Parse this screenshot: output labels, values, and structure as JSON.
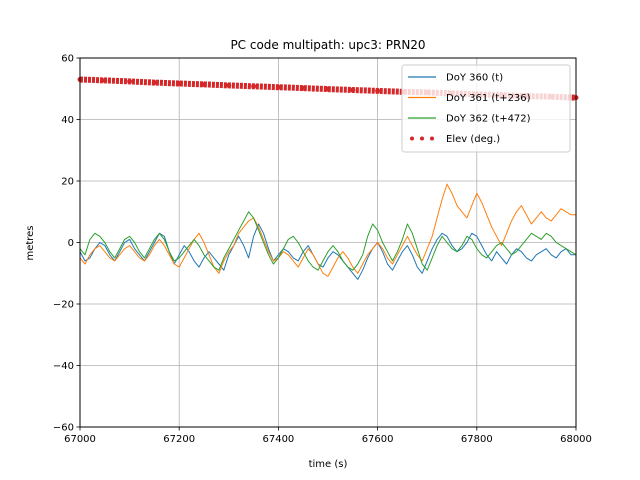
{
  "chart_data": {
    "type": "line",
    "title": "PC code multipath: upc3: PRN20",
    "xlabel": "time (s)",
    "ylabel": "metres",
    "xlim": [
      67000,
      68000
    ],
    "ylim": [
      -60,
      60
    ],
    "xticks": [
      67000,
      67200,
      67400,
      67600,
      67800,
      68000
    ],
    "yticks": [
      -60,
      -40,
      -20,
      0,
      20,
      40,
      60
    ],
    "grid": true,
    "legend_position": "top-right",
    "series": [
      {
        "name": "DoY 360 (t)",
        "color": "#1f77b4",
        "style": "line",
        "x": [
          67000,
          67010,
          67020,
          67030,
          67040,
          67050,
          67060,
          67070,
          67080,
          67090,
          67100,
          67110,
          67120,
          67130,
          67140,
          67150,
          67160,
          67170,
          67180,
          67190,
          67200,
          67210,
          67220,
          67230,
          67240,
          67250,
          67260,
          67270,
          67280,
          67290,
          67300,
          67310,
          67320,
          67330,
          67340,
          67350,
          67360,
          67370,
          67380,
          67390,
          67400,
          67410,
          67420,
          67430,
          67440,
          67450,
          67460,
          67470,
          67480,
          67490,
          67500,
          67510,
          67520,
          67530,
          67540,
          67550,
          67560,
          67570,
          67580,
          67590,
          67600,
          67610,
          67620,
          67630,
          67640,
          67650,
          67660,
          67670,
          67680,
          67690,
          67700,
          67710,
          67720,
          67730,
          67740,
          67750,
          67760,
          67770,
          67780,
          67790,
          67800,
          67810,
          67820,
          67830,
          67840,
          67850,
          67860,
          67870,
          67880,
          67890,
          67900,
          67910,
          67920,
          67930,
          67940,
          67950,
          67960,
          67970,
          67980,
          67990,
          68000
        ],
        "y": [
          -3,
          -6,
          -5,
          -2,
          0,
          -1,
          -4,
          -6,
          -3,
          0,
          1,
          -2,
          -4,
          -6,
          -3,
          0,
          3,
          2,
          -3,
          -7,
          -4,
          -1,
          -3,
          -6,
          -8,
          -5,
          -3,
          -5,
          -7,
          -9,
          -4,
          -1,
          2,
          -1,
          -5,
          2,
          6,
          3,
          -2,
          -6,
          -4,
          -2,
          -3,
          -5,
          -6,
          -3,
          -1,
          -4,
          -7,
          -8,
          -5,
          -3,
          -4,
          -6,
          -8,
          -10,
          -12,
          -9,
          -5,
          -2,
          0,
          -3,
          -7,
          -9,
          -6,
          -3,
          -1,
          -4,
          -8,
          -10,
          -6,
          -2,
          1,
          3,
          2,
          -1,
          -3,
          -2,
          0,
          3,
          2,
          -1,
          -4,
          -6,
          -3,
          -5,
          -7,
          -4,
          -2,
          -3,
          -5,
          -6,
          -4,
          -3,
          -2,
          -4,
          -5,
          -3,
          -2,
          -4,
          -4
        ]
      },
      {
        "name": "DoY 361 (t+236)",
        "color": "#ff7f0e",
        "style": "line",
        "x": [
          67000,
          67010,
          67020,
          67030,
          67040,
          67050,
          67060,
          67070,
          67080,
          67090,
          67100,
          67110,
          67120,
          67130,
          67140,
          67150,
          67160,
          67170,
          67180,
          67190,
          67200,
          67210,
          67220,
          67230,
          67240,
          67250,
          67260,
          67270,
          67280,
          67290,
          67300,
          67310,
          67320,
          67330,
          67340,
          67350,
          67360,
          67370,
          67380,
          67390,
          67400,
          67410,
          67420,
          67430,
          67440,
          67450,
          67460,
          67470,
          67480,
          67490,
          67500,
          67510,
          67520,
          67530,
          67540,
          67550,
          67560,
          67570,
          67580,
          67590,
          67600,
          67610,
          67620,
          67630,
          67640,
          67650,
          67660,
          67670,
          67680,
          67690,
          67700,
          67710,
          67720,
          67730,
          67740,
          67750,
          67760,
          67770,
          67780,
          67790,
          67800,
          67810,
          67820,
          67830,
          67840,
          67850,
          67860,
          67870,
          67880,
          67890,
          67900,
          67910,
          67920,
          67930,
          67940,
          67950,
          67960,
          67970,
          67980,
          67990,
          68000
        ],
        "y": [
          -5,
          -7,
          -4,
          -2,
          -1,
          -3,
          -5,
          -6,
          -4,
          -2,
          -1,
          -3,
          -5,
          -6,
          -4,
          -1,
          1,
          -1,
          -4,
          -7,
          -8,
          -5,
          -2,
          1,
          3,
          0,
          -4,
          -8,
          -10,
          -6,
          -3,
          -1,
          3,
          5,
          7,
          8,
          5,
          1,
          -3,
          -6,
          -5,
          -3,
          -4,
          -6,
          -8,
          -5,
          -2,
          -4,
          -7,
          -10,
          -11,
          -8,
          -5,
          -3,
          -5,
          -8,
          -10,
          -7,
          -4,
          -2,
          0,
          -2,
          -5,
          -7,
          -4,
          -1,
          2,
          -1,
          -4,
          -6,
          -2,
          2,
          8,
          14,
          19,
          16,
          12,
          10,
          8,
          12,
          16,
          13,
          9,
          5,
          2,
          -1,
          3,
          7,
          10,
          12,
          9,
          6,
          8,
          10,
          8,
          7,
          9,
          11,
          10,
          9,
          9
        ]
      },
      {
        "name": "DoY 362 (t+472)",
        "color": "#2ca02c",
        "style": "line",
        "x": [
          67000,
          67010,
          67020,
          67030,
          67040,
          67050,
          67060,
          67070,
          67080,
          67090,
          67100,
          67110,
          67120,
          67130,
          67140,
          67150,
          67160,
          67170,
          67180,
          67190,
          67200,
          67210,
          67220,
          67230,
          67240,
          67250,
          67260,
          67270,
          67280,
          67290,
          67300,
          67310,
          67320,
          67330,
          67340,
          67350,
          67360,
          67370,
          67380,
          67390,
          67400,
          67410,
          67420,
          67430,
          67440,
          67450,
          67460,
          67470,
          67480,
          67490,
          67500,
          67510,
          67520,
          67530,
          67540,
          67550,
          67560,
          67570,
          67580,
          67590,
          67600,
          67610,
          67620,
          67630,
          67640,
          67650,
          67660,
          67670,
          67680,
          67690,
          67700,
          67710,
          67720,
          67730,
          67740,
          67750,
          67760,
          67770,
          67780,
          67790,
          67800,
          67810,
          67820,
          67830,
          67840,
          67850,
          67860,
          67870,
          67880,
          67890,
          67900,
          67910,
          67920,
          67930,
          67940,
          67950,
          67960,
          67970,
          67980,
          67990,
          68000
        ],
        "y": [
          -2,
          -4,
          1,
          3,
          2,
          0,
          -3,
          -5,
          -2,
          1,
          2,
          0,
          -3,
          -5,
          -2,
          1,
          3,
          1,
          -3,
          -6,
          -5,
          -3,
          -1,
          1,
          -1,
          -4,
          -6,
          -8,
          -9,
          -5,
          -2,
          1,
          4,
          7,
          10,
          8,
          4,
          0,
          -4,
          -7,
          -5,
          -2,
          1,
          2,
          0,
          -3,
          -6,
          -8,
          -9,
          -6,
          -3,
          -1,
          -3,
          -6,
          -8,
          -9,
          -7,
          -4,
          2,
          6,
          4,
          0,
          -3,
          -6,
          -3,
          1,
          6,
          3,
          -2,
          -7,
          -9,
          -5,
          -1,
          2,
          0,
          -2,
          -3,
          -1,
          2,
          1,
          -2,
          -4,
          -5,
          -3,
          -1,
          0,
          -2,
          -4,
          -3,
          -1,
          1,
          3,
          2,
          1,
          3,
          2,
          0,
          -1,
          -2,
          -3,
          -4
        ]
      },
      {
        "name": "Elev (deg.)",
        "color": "#d62728",
        "style": "dots",
        "x": [
          67000,
          67050,
          67100,
          67150,
          67200,
          67250,
          67300,
          67350,
          67400,
          67450,
          67500,
          67550,
          67600,
          67650,
          67700,
          67750,
          67800,
          67850,
          67900,
          67950,
          68000
        ],
        "y": [
          53,
          52.7,
          52.4,
          52.0,
          51.7,
          51.4,
          51.1,
          50.8,
          50.5,
          50.2,
          49.9,
          49.6,
          49.3,
          49.0,
          48.8,
          48.5,
          48.2,
          47.9,
          47.6,
          47.4,
          47.1
        ]
      }
    ]
  }
}
